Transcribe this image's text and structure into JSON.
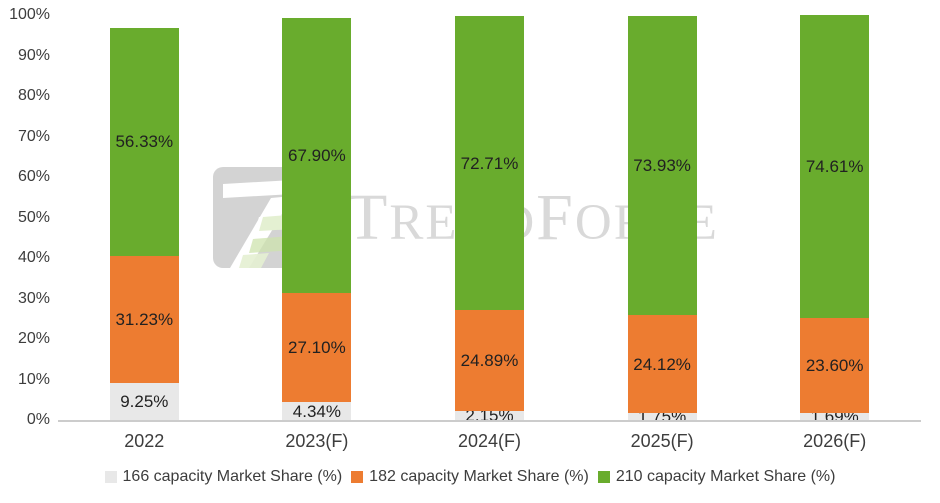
{
  "chart_data": {
    "type": "bar",
    "stacked": true,
    "title": "",
    "xlabel": "",
    "ylabel": "",
    "ylim": [
      0,
      100
    ],
    "grid": false,
    "legend_position": "bottom",
    "y_tick_labels": [
      "0%",
      "10%",
      "20%",
      "30%",
      "40%",
      "50%",
      "60%",
      "70%",
      "80%",
      "90%",
      "100%"
    ],
    "categories": [
      "2022",
      "2023(F)",
      "2024(F)",
      "2025(F)",
      "2026(F)"
    ],
    "series": [
      {
        "name": "166 capacity Market Share (%)",
        "color": "#e8e8e8",
        "values": [
          9.25,
          4.34,
          2.15,
          1.75,
          1.69
        ],
        "labels": [
          "9.25%",
          "4.34%",
          "2.15%",
          "1.75%",
          "1.69%"
        ]
      },
      {
        "name": "182 capacity Market Share (%)",
        "color": "#ed7c31",
        "values": [
          31.23,
          27.1,
          24.89,
          24.12,
          23.6
        ],
        "labels": [
          "31.23%",
          "27.10%",
          "24.89%",
          "24.12%",
          "23.60%"
        ]
      },
      {
        "name": "210 capacity Market Share (%)",
        "color": "#69ac2d",
        "values": [
          56.33,
          67.9,
          72.71,
          73.93,
          74.61
        ],
        "labels": [
          "56.33%",
          "67.90%",
          "72.71%",
          "73.93%",
          "74.61%"
        ]
      }
    ]
  },
  "watermark": {
    "text_part1": "T",
    "text_part2": "REND",
    "text_part3": "F",
    "text_part4": "ORCE"
  },
  "colors": {
    "axis_line": "#cccccc",
    "tick_text": "#3d3d3d",
    "data_label": "#212121",
    "watermark_gray": "#d9d9d9"
  }
}
